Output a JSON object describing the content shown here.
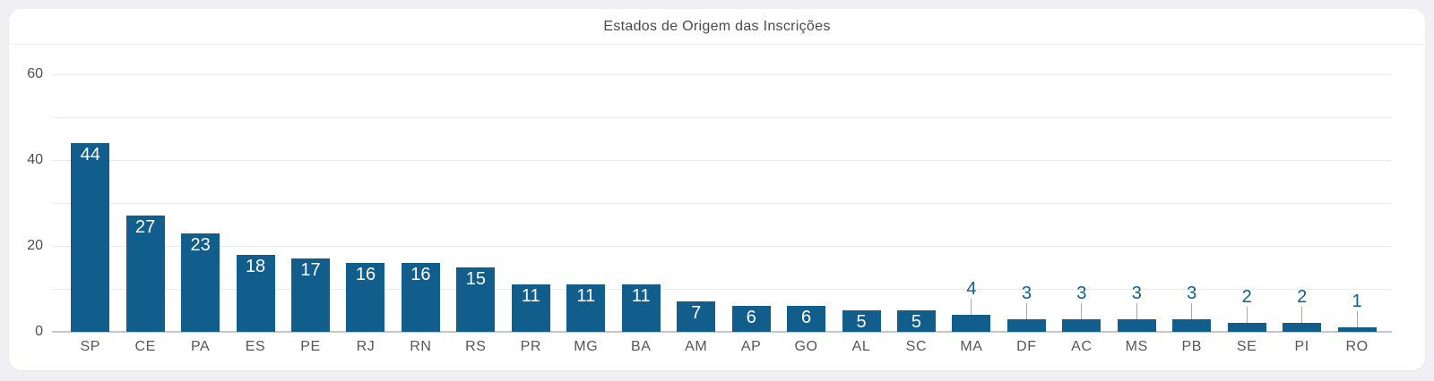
{
  "header": {
    "title": "Estados de Origem das Inscrições"
  },
  "chart_data": {
    "type": "bar",
    "title": "Estados de Origem das Inscrições",
    "categories": [
      "SP",
      "CE",
      "PA",
      "ES",
      "PE",
      "RJ",
      "RN",
      "RS",
      "PR",
      "MG",
      "BA",
      "AM",
      "AP",
      "GO",
      "AL",
      "SC",
      "MA",
      "DF",
      "AC",
      "MS",
      "PB",
      "SE",
      "PI",
      "RO"
    ],
    "values": [
      44,
      27,
      23,
      18,
      17,
      16,
      16,
      15,
      11,
      11,
      11,
      7,
      6,
      6,
      5,
      5,
      4,
      3,
      3,
      3,
      3,
      2,
      2,
      1
    ],
    "xlabel": "",
    "ylabel": "",
    "ylim": [
      0,
      60
    ],
    "yticks": [
      0,
      20,
      40,
      60
    ],
    "gridline_step": 10,
    "grid": true,
    "legend_position": "none",
    "inside_label_min_value": 5,
    "colors": {
      "bar": "#115e8c",
      "value_label_inside": "#ffffff",
      "value_label_outside": "#115e8c",
      "leader_line": "#a8a8a8",
      "grid_line": "#e9e9e9",
      "axis_line": "#c6c6c6",
      "tick_label": "#4d4d4d",
      "category_label": "#565656",
      "card_background": "#ffffff",
      "page_background": "#f0f0f4"
    }
  }
}
